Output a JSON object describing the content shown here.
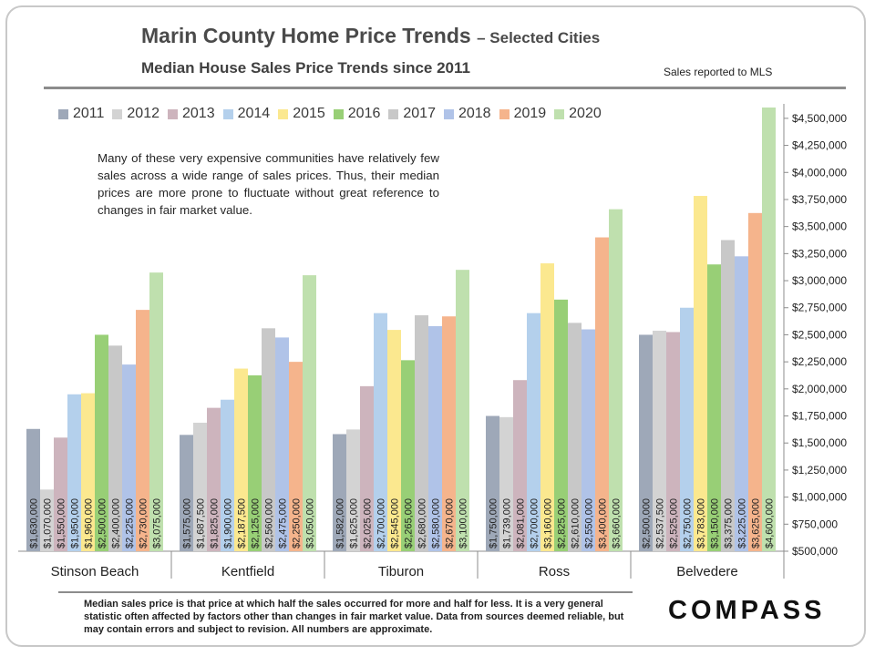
{
  "header": {
    "title": "Marin County Home Price Trends",
    "title_suffix": "– Selected Cities",
    "subtitle": "Median House Sales Price Trends since 2011",
    "sales_note": "Sales reported to MLS"
  },
  "annotation": "Many of these very expensive communities have relatively few sales across a wide range of sales prices. Thus, their median prices are more prone to fluctuate without great reference to changes in fair market value.",
  "footnote": "Median sales price is that price at which half the sales occurred for more and half for less. It is a very general statistic often affected by factors other than changes in fair market value. Data from sources deemed reliable, but may contain errors and subject to revision. All numbers are approximate.",
  "logo": "COMPASS",
  "colors": {
    "2011": "#9ea8b8",
    "2012": "#d3d3d3",
    "2013": "#cdb4bd",
    "2014": "#b4d0ec",
    "2015": "#fbe88f",
    "2016": "#98cf76",
    "2017": "#c8c8c8",
    "2018": "#b0c3e8",
    "2019": "#f5b48c",
    "2020": "#bfe0ae"
  },
  "chart_data": {
    "type": "bar",
    "categories": [
      "Stinson Beach",
      "Kentfield",
      "Tiburon",
      "Ross",
      "Belvedere"
    ],
    "legend_position": "top",
    "ylim": [
      500000,
      4600000
    ],
    "yticks": [
      "$500,000",
      "$750,000",
      "$1,000,000",
      "$1,250,000",
      "$1,500,000",
      "$1,750,000",
      "$2,000,000",
      "$2,250,000",
      "$2,500,000",
      "$2,750,000",
      "$3,000,000",
      "$3,250,000",
      "$3,500,000",
      "$3,750,000",
      "$4,000,000",
      "$4,250,000",
      "$4,500,000"
    ],
    "ytick_values": [
      500000,
      750000,
      1000000,
      1250000,
      1500000,
      1750000,
      2000000,
      2250000,
      2500000,
      2750000,
      3000000,
      3250000,
      3500000,
      3750000,
      4000000,
      4250000,
      4500000
    ],
    "series": [
      {
        "name": "2011",
        "values": [
          1630000,
          1575000,
          1582000,
          1750000,
          2500000
        ],
        "labels": [
          "$1,630,000",
          "$1,575,000",
          "$1,582,000",
          "$1,750,000",
          "$2,500,000"
        ]
      },
      {
        "name": "2012",
        "values": [
          1070000,
          1687500,
          1625000,
          1739000,
          2537500
        ],
        "labels": [
          "$1,070,000",
          "$1,687,500",
          "$1,625,000",
          "$1,739,000",
          "$2,537,500"
        ]
      },
      {
        "name": "2013",
        "values": [
          1550000,
          1825000,
          2025000,
          2081000,
          2525000
        ],
        "labels": [
          "$1,550,000",
          "$1,825,000",
          "$2,025,000",
          "$2,081,000",
          "$2,525,000"
        ]
      },
      {
        "name": "2014",
        "values": [
          1950000,
          1900000,
          2700000,
          2700000,
          2750000
        ],
        "labels": [
          "$1,950,000",
          "$1,900,000",
          "$2,700,000",
          "$2,700,000",
          "$2,750,000"
        ]
      },
      {
        "name": "2015",
        "values": [
          1960000,
          2187500,
          2545000,
          3160000,
          3783000
        ],
        "labels": [
          "$1,960,000",
          "$2,187,500",
          "$2,545,000",
          "$3,160,000",
          "$3,783,000"
        ]
      },
      {
        "name": "2016",
        "values": [
          2500000,
          2125000,
          2265000,
          2825000,
          3150000
        ],
        "labels": [
          "$2,500,000",
          "$2,125,000",
          "$2,265,000",
          "$2,825,000",
          "$3,150,000"
        ]
      },
      {
        "name": "2017",
        "values": [
          2400000,
          2560000,
          2680000,
          2610000,
          3375000
        ],
        "labels": [
          "$2,400,000",
          "$2,560,000",
          "$2,680,000",
          "$2,610,000",
          "$3,375,000"
        ]
      },
      {
        "name": "2018",
        "values": [
          2225000,
          2475000,
          2580000,
          2550000,
          3225000
        ],
        "labels": [
          "$2,225,000",
          "$2,475,000",
          "$2,580,000",
          "$2,550,000",
          "$3,225,000"
        ]
      },
      {
        "name": "2019",
        "values": [
          2730000,
          2250000,
          2670000,
          3400000,
          3625000
        ],
        "labels": [
          "$2,730,000",
          "$2,250,000",
          "$2,670,000",
          "$3,400,000",
          "$3,625,000"
        ]
      },
      {
        "name": "2020",
        "values": [
          3075000,
          3050000,
          3100000,
          3660000,
          4600000
        ],
        "labels": [
          "$3,075,000",
          "$3,050,000",
          "$3,100,000",
          "$3,660,000",
          "$4,600,000"
        ]
      }
    ]
  }
}
